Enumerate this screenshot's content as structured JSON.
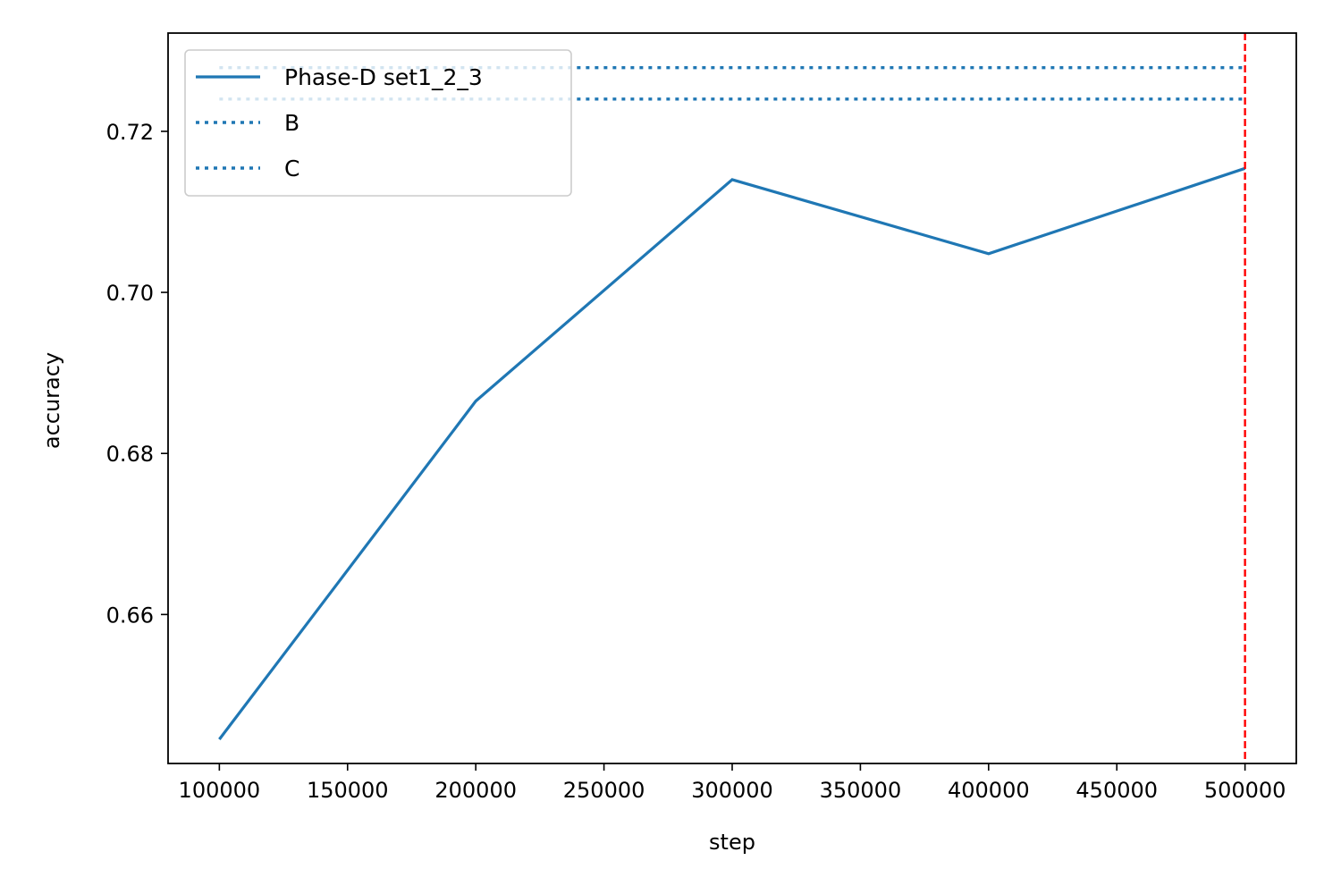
{
  "chart_data": {
    "type": "line",
    "xlabel": "step",
    "ylabel": "accuracy",
    "xlim": [
      80000,
      520000
    ],
    "ylim": [
      0.6415,
      0.7322
    ],
    "xticks": [
      100000,
      150000,
      200000,
      250000,
      300000,
      350000,
      400000,
      450000,
      500000
    ],
    "yticks": [
      0.66,
      0.68,
      0.7,
      0.72
    ],
    "ytick_labels": [
      "0.66",
      "0.68",
      "0.70",
      "0.72"
    ],
    "grid": false,
    "legend_position": "upper-left",
    "series": [
      {
        "name": "Phase-D set1_2_3",
        "style": "solid",
        "color": "#1f77b4",
        "x": [
          100000,
          200000,
          300000,
          400000,
          500000
        ],
        "y": [
          0.6445,
          0.6865,
          0.714,
          0.7048,
          0.7154
        ]
      },
      {
        "name": "B",
        "style": "dotted",
        "color": "#1f77b4",
        "x": [
          100000,
          500000
        ],
        "y": [
          0.7279,
          0.7279
        ]
      },
      {
        "name": "C",
        "style": "dotted",
        "color": "#1f77b4",
        "x": [
          100000,
          500000
        ],
        "y": [
          0.724,
          0.724
        ]
      }
    ],
    "vertical_line": {
      "x": 500000,
      "color": "#ff0000",
      "style": "dashed"
    }
  }
}
